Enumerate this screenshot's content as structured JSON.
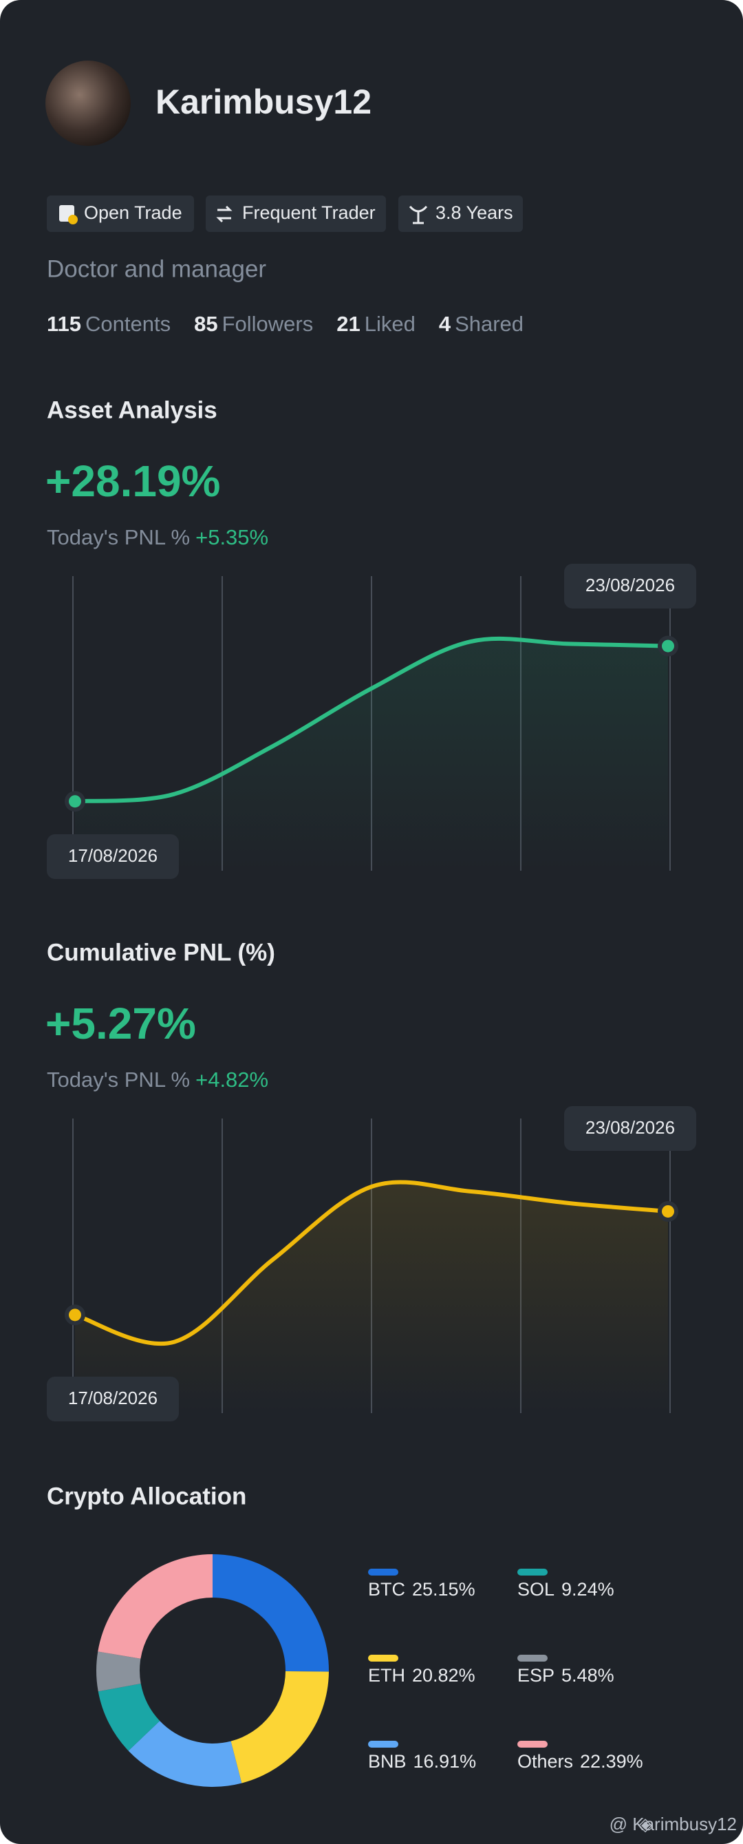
{
  "profile": {
    "username": "Karimbusy12",
    "badges": [
      "Open Trade",
      "Frequent Trader",
      "3.8 Years"
    ],
    "bio": "Doctor and manager",
    "stats": [
      {
        "value": "115",
        "label": "Contents"
      },
      {
        "value": "85",
        "label": "Followers"
      },
      {
        "value": "21",
        "label": "Liked"
      },
      {
        "value": "4",
        "label": "Shared"
      }
    ]
  },
  "chart_data": [
    {
      "type": "line",
      "title": "Asset Analysis",
      "headline": "+28.19%",
      "pnl_label": "Today's PNL %",
      "pnl_value": "+5.35%",
      "categories": [
        "17/08/2026",
        null,
        null,
        null,
        null,
        null,
        "23/08/2026"
      ],
      "series": [
        {
          "color": "#2ebd85",
          "values": [
            0,
            1.3,
            10.0,
            20.5,
            29.0,
            28.6,
            28.2
          ]
        }
      ],
      "ylim": [
        -12.6,
        40.9
      ]
    },
    {
      "type": "line",
      "title": "Cumulative PNL (%)",
      "headline": "+5.27%",
      "pnl_label": "Today's PNL %",
      "pnl_value": "+4.82%",
      "categories": [
        "17/08/2026",
        null,
        null,
        null,
        null,
        null,
        "23/08/2026"
      ],
      "series": [
        {
          "color": "#f0b90b",
          "values": [
            0,
            -1.38,
            2.81,
            6.53,
            6.29,
            5.69,
            5.27
          ]
        }
      ],
      "ylim": [
        -5,
        10
      ]
    },
    {
      "type": "pie",
      "title": "Crypto Allocation",
      "categories": [
        "BTC",
        "ETH",
        "BNB",
        "SOL",
        "ESP",
        "Others"
      ],
      "values": [
        25.15,
        20.82,
        16.91,
        9.24,
        5.48,
        22.39
      ],
      "value_labels": [
        "25.15%",
        "20.82%",
        "16.91%",
        "9.24%",
        "5.48%",
        "22.39%"
      ],
      "colors": [
        "#1e6fdc",
        "#fcd535",
        "#5fa8f5",
        "#1aa6a6",
        "#8a929c",
        "#f6a0a8"
      ]
    }
  ],
  "watermark": "@ Karimbusy12"
}
